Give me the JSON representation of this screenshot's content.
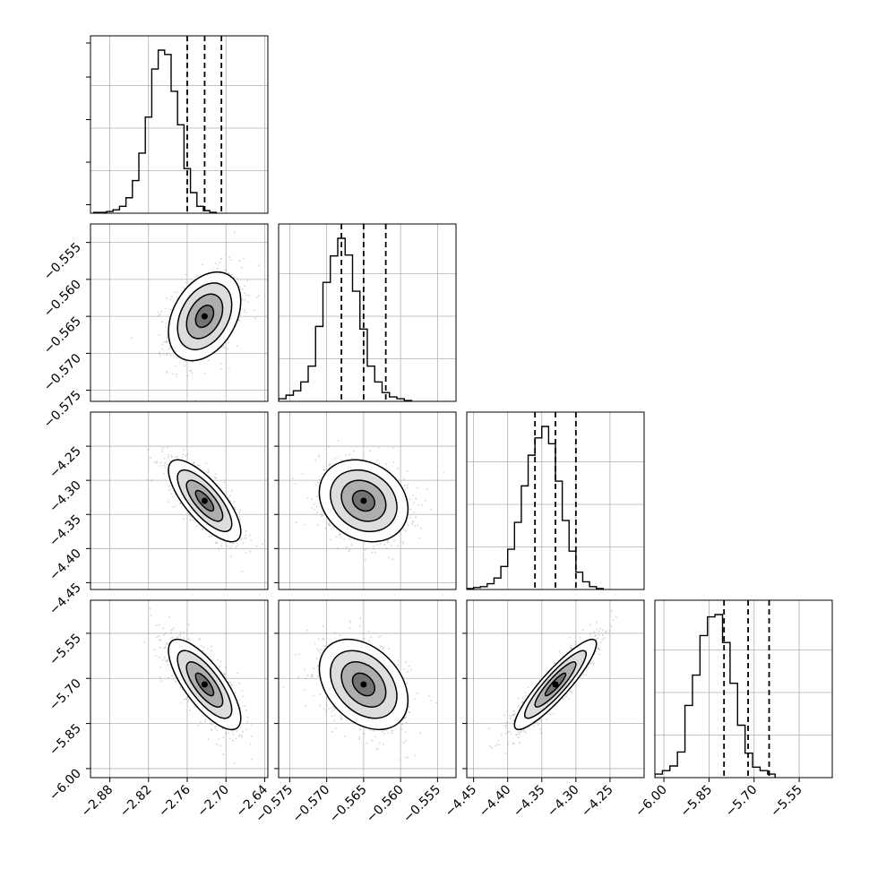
{
  "chart_data": {
    "type": "corner",
    "grid": true,
    "colors": {
      "line": "#000000",
      "grid": "#b0b0b0",
      "scatter": "#555555",
      "fill_low": "#f2f2f2",
      "fill_high": "#000000"
    },
    "params": [
      {
        "range": [
          -2.91,
          -2.635
        ],
        "ticks": [
          "-2.88",
          "-2.82",
          "-2.76",
          "-2.70",
          "-2.64"
        ],
        "tick_values": [
          -2.88,
          -2.82,
          -2.76,
          -2.7,
          -2.64
        ],
        "quantiles": [
          -2.76,
          -2.733,
          -2.707
        ],
        "hist": {
          "edges_start": -2.905,
          "bin_width": 0.01,
          "counts": [
            1,
            1,
            2,
            4,
            8,
            18,
            38,
            70,
            112,
            168,
            190,
            185,
            142,
            103,
            52,
            24,
            8,
            3,
            1
          ]
        }
      },
      {
        "range": [
          -0.5765,
          -0.5525
        ],
        "ticks": [
          "-0.575",
          "-0.570",
          "-0.565",
          "-0.560",
          "-0.555"
        ],
        "tick_values": [
          -0.575,
          -0.57,
          -0.565,
          -0.56,
          -0.555
        ],
        "quantiles": [
          -0.568,
          -0.565,
          -0.562
        ],
        "hist": {
          "edges_start": -0.5765,
          "bin_width": 0.001,
          "counts": [
            3,
            7,
            12,
            22,
            40,
            85,
            135,
            165,
            185,
            166,
            125,
            82,
            40,
            22,
            10,
            5,
            3,
            1
          ]
        }
      },
      {
        "range": [
          -4.46,
          -4.2
        ],
        "ticks": [
          "-4.45",
          "-4.40",
          "-4.35",
          "-4.30",
          "-4.25"
        ],
        "tick_values": [
          -4.45,
          -4.4,
          -4.35,
          -4.3,
          -4.25
        ],
        "quantiles": [
          -4.36,
          -4.33,
          -4.3
        ],
        "hist": {
          "edges_start": -4.46,
          "bin_width": 0.01,
          "counts": [
            1,
            2,
            3,
            6,
            12,
            24,
            42,
            70,
            108,
            140,
            158,
            170,
            152,
            113,
            72,
            40,
            18,
            8,
            3,
            1
          ]
        }
      },
      {
        "range": [
          -6.03,
          -5.44
        ],
        "ticks": [
          "-6.00",
          "-5.85",
          "-5.70",
          "-5.55"
        ],
        "tick_values": [
          -6.0,
          -5.85,
          -5.7,
          -5.55
        ],
        "quantiles": [
          -5.8,
          -5.72,
          -5.65
        ],
        "hist": {
          "edges_start": -6.03,
          "bin_width": 0.025,
          "counts": [
            3,
            6,
            10,
            22,
            62,
            88,
            122,
            138,
            140,
            116,
            81,
            45,
            21,
            9,
            6,
            3
          ]
        }
      }
    ],
    "pairs": [
      {
        "x": 0,
        "y": 1,
        "mean": [
          -2.733,
          -0.565
        ],
        "sd": [
          0.028,
          0.003
        ],
        "rho": 0.35,
        "contour_levels_sd": [
          0.5,
          1.0,
          1.5,
          2.0
        ]
      },
      {
        "x": 0,
        "y": 2,
        "mean": [
          -2.733,
          -4.33
        ],
        "sd": [
          0.028,
          0.03
        ],
        "rho": -0.75,
        "contour_levels_sd": [
          0.5,
          1.0,
          1.5,
          2.0
        ]
      },
      {
        "x": 1,
        "y": 2,
        "mean": [
          -0.565,
          -4.33
        ],
        "sd": [
          0.003,
          0.03
        ],
        "rho": -0.2,
        "contour_levels_sd": [
          0.5,
          1.0,
          1.5,
          2.0
        ]
      },
      {
        "x": 0,
        "y": 3,
        "mean": [
          -2.733,
          -5.72
        ],
        "sd": [
          0.028,
          0.075
        ],
        "rho": -0.75,
        "contour_levels_sd": [
          0.5,
          1.0,
          1.5,
          2.0
        ]
      },
      {
        "x": 1,
        "y": 3,
        "mean": [
          -0.565,
          -5.72
        ],
        "sd": [
          0.003,
          0.075
        ],
        "rho": -0.35,
        "contour_levels_sd": [
          0.5,
          1.0,
          1.5,
          2.0
        ]
      },
      {
        "x": 2,
        "y": 3,
        "mean": [
          -4.33,
          -5.72
        ],
        "sd": [
          0.03,
          0.075
        ],
        "rho": 0.9,
        "contour_levels_sd": [
          0.5,
          1.0,
          1.5,
          2.0
        ]
      }
    ]
  }
}
